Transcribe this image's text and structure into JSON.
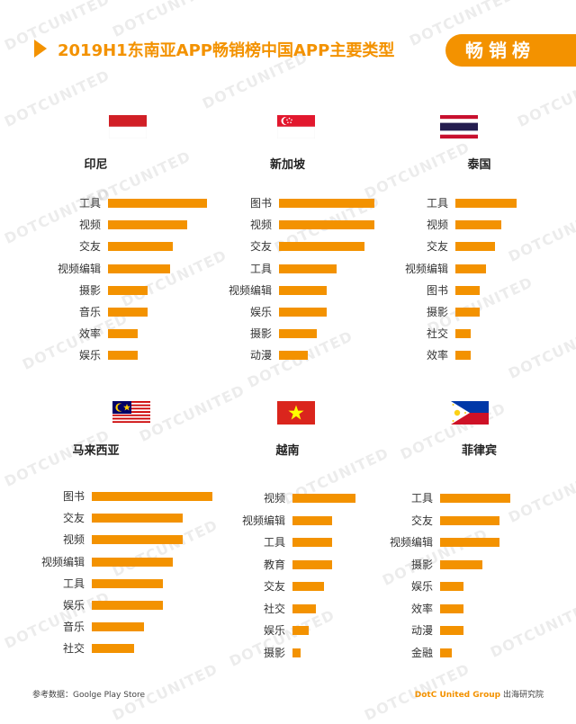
{
  "header": {
    "title": "2019H1东南亚APP畅销榜中国APP主要类型",
    "badge": "畅销榜"
  },
  "watermark": "DOTCUNITED",
  "colors": {
    "accent": "#f39200"
  },
  "chart_data": [
    {
      "type": "bar",
      "title": "印尼",
      "flag": "indonesia",
      "categories": [
        "工具",
        "视频",
        "交友",
        "视频编辑",
        "摄影",
        "音乐",
        "效率",
        "娱乐"
      ],
      "values": [
        10,
        8,
        6.5,
        6.3,
        4,
        4,
        3,
        3
      ]
    },
    {
      "type": "bar",
      "title": "新加坡",
      "flag": "singapore",
      "categories": [
        "图书",
        "视频",
        "交友",
        "工具",
        "视频编辑",
        "娱乐",
        "摄影",
        "动漫"
      ],
      "values": [
        10,
        10,
        9,
        6,
        5,
        5,
        4,
        3
      ]
    },
    {
      "type": "bar",
      "title": "泰国",
      "flag": "thailand",
      "categories": [
        "工具",
        "视频",
        "交友",
        "视频编辑",
        "图书",
        "摄影",
        "社交",
        "效率"
      ],
      "values": [
        10,
        7.5,
        6.5,
        5,
        4,
        4,
        2.5,
        2.5
      ]
    },
    {
      "type": "bar",
      "title": "马来西亚",
      "flag": "malaysia",
      "categories": [
        "图书",
        "交友",
        "视频",
        "视频编辑",
        "工具",
        "娱乐",
        "音乐",
        "社交"
      ],
      "values": [
        10,
        7.5,
        7.5,
        6.7,
        5.9,
        5.9,
        4.3,
        3.5
      ]
    },
    {
      "type": "bar",
      "title": "越南",
      "flag": "vietnam",
      "categories": [
        "视频",
        "视频编辑",
        "工具",
        "教育",
        "交友",
        "社交",
        "娱乐",
        "摄影"
      ],
      "values": [
        10,
        6.3,
        6.3,
        6.3,
        5,
        3.7,
        2.6,
        1.3
      ]
    },
    {
      "type": "bar",
      "title": "菲律宾",
      "flag": "philippines",
      "categories": [
        "工具",
        "交友",
        "视频编辑",
        "摄影",
        "娱乐",
        "效率",
        "动漫",
        "金融"
      ],
      "values": [
        10,
        8.5,
        8.5,
        6,
        3.3,
        3.3,
        3.3,
        1.7
      ]
    }
  ],
  "footer": {
    "source": "参考数据：Goolge Play Store",
    "brand": "DotC United Group",
    "brand_suffix": "出海研究院"
  }
}
